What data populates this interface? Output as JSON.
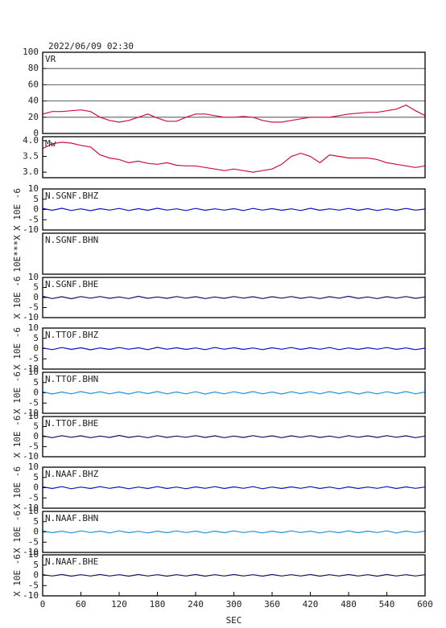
{
  "chart_data": [
    {
      "type": "line",
      "title": "2022/06/09 02:30",
      "label": "VR",
      "color": "#d0103a",
      "grid": true,
      "x": [
        0,
        15,
        30,
        45,
        60,
        75,
        90,
        105,
        120,
        135,
        150,
        165,
        180,
        195,
        210,
        225,
        240,
        255,
        270,
        285,
        300,
        315,
        330,
        345,
        360,
        375,
        390,
        405,
        420,
        435,
        450,
        465,
        480,
        495,
        510,
        525,
        540,
        555,
        570,
        585,
        600
      ],
      "values": [
        24,
        27,
        27,
        28,
        29,
        27,
        20,
        16,
        14,
        16,
        20,
        24,
        19,
        15,
        15,
        20,
        24,
        24,
        22,
        20,
        20,
        21,
        20,
        16,
        14,
        14,
        16,
        18,
        20,
        20,
        20,
        22,
        24,
        25,
        26,
        26,
        28,
        30,
        35,
        28,
        22
      ],
      "ylim": [
        0,
        100
      ],
      "yticks": [
        0,
        20,
        40,
        60,
        80,
        100
      ]
    },
    {
      "type": "line",
      "label": "Mw",
      "color": "#d0103a",
      "x": [
        0,
        15,
        30,
        45,
        60,
        75,
        90,
        105,
        120,
        135,
        150,
        165,
        180,
        195,
        210,
        225,
        240,
        255,
        270,
        285,
        300,
        315,
        330,
        345,
        360,
        375,
        390,
        405,
        420,
        435,
        450,
        465,
        480,
        495,
        510,
        525,
        540,
        555,
        570,
        585,
        600
      ],
      "values": [
        3.75,
        3.9,
        3.95,
        3.92,
        3.85,
        3.8,
        3.55,
        3.45,
        3.4,
        3.3,
        3.35,
        3.28,
        3.25,
        3.3,
        3.22,
        3.2,
        3.2,
        3.15,
        3.1,
        3.05,
        3.1,
        3.05,
        3.0,
        3.05,
        3.1,
        3.25,
        3.5,
        3.6,
        3.5,
        3.3,
        3.55,
        3.5,
        3.45,
        3.45,
        3.45,
        3.4,
        3.3,
        3.25,
        3.2,
        3.15,
        3.2
      ],
      "ylim": [
        2.825,
        4.125
      ],
      "yticks": [
        {
          "value": 3,
          "label": "3.0"
        },
        3.5,
        {
          "value": 4,
          "label": "4.0"
        }
      ]
    },
    {
      "type": "line",
      "label": "N.SGNF.BHZ",
      "ylabel": "X 10E -6",
      "color": "#1010c0",
      "x": [
        0,
        15,
        30,
        45,
        60,
        75,
        90,
        105,
        120,
        135,
        150,
        165,
        180,
        195,
        210,
        225,
        240,
        255,
        270,
        285,
        300,
        315,
        330,
        345,
        360,
        375,
        390,
        405,
        420,
        435,
        450,
        465,
        480,
        495,
        510,
        525,
        540,
        555,
        570,
        585,
        600
      ],
      "values": [
        0.5,
        -0.4,
        0.6,
        -0.5,
        0.3,
        -0.6,
        0.4,
        -0.3,
        0.5,
        -0.5,
        0.4,
        -0.4,
        0.6,
        -0.3,
        0.3,
        -0.5,
        0.5,
        -0.4,
        0.3,
        -0.3,
        0.4,
        -0.5,
        0.5,
        -0.3,
        0.4,
        -0.4,
        0.3,
        -0.5,
        0.6,
        -0.4,
        0.3,
        -0.3,
        0.5,
        -0.4,
        0.4,
        -0.5,
        0.3,
        -0.4,
        0.5,
        -0.3,
        0.2
      ],
      "ylim": [
        -10,
        10
      ],
      "yticks": [
        -10,
        -5,
        0,
        5,
        10
      ]
    },
    {
      "type": "line",
      "label": "N.SGNF.BHN",
      "ylabel": "10E***X",
      "color": "#2090e0",
      "x": [],
      "values": []
    },
    {
      "type": "line",
      "label": "N.SGNF.BHE",
      "ylabel": "X 10E -6",
      "color": "#101060",
      "x": [
        0,
        15,
        30,
        45,
        60,
        75,
        90,
        105,
        120,
        135,
        150,
        165,
        180,
        195,
        210,
        225,
        240,
        255,
        270,
        285,
        300,
        315,
        330,
        345,
        360,
        375,
        390,
        405,
        420,
        435,
        450,
        465,
        480,
        495,
        510,
        525,
        540,
        555,
        570,
        585,
        600
      ],
      "values": [
        0.6,
        -0.5,
        0.4,
        -0.6,
        0.5,
        -0.3,
        0.5,
        -0.4,
        0.3,
        -0.5,
        0.6,
        -0.4,
        0.3,
        -0.4,
        0.5,
        -0.3,
        0.4,
        -0.5,
        0.3,
        -0.4,
        0.5,
        -0.3,
        0.4,
        -0.5,
        0.4,
        -0.3,
        0.5,
        -0.4,
        0.3,
        -0.5,
        0.4,
        -0.3,
        0.6,
        -0.4,
        0.3,
        -0.5,
        0.4,
        -0.3,
        0.5,
        -0.4,
        0.3
      ],
      "ylim": [
        -10,
        10
      ],
      "yticks": [
        -10,
        -5,
        0,
        5,
        10
      ]
    },
    {
      "type": "line",
      "label": "N.TTOF.BHZ",
      "ylabel": "X 10E -6",
      "color": "#1010c0",
      "x": [
        0,
        15,
        30,
        45,
        60,
        75,
        90,
        105,
        120,
        135,
        150,
        165,
        180,
        195,
        210,
        225,
        240,
        255,
        270,
        285,
        300,
        315,
        330,
        345,
        360,
        375,
        390,
        405,
        420,
        435,
        450,
        465,
        480,
        495,
        510,
        525,
        540,
        555,
        570,
        585,
        600
      ],
      "values": [
        0.3,
        -0.5,
        0.5,
        -0.4,
        0.4,
        -0.6,
        0.3,
        -0.4,
        0.5,
        -0.3,
        0.4,
        -0.5,
        0.6,
        -0.3,
        0.4,
        -0.4,
        0.3,
        -0.5,
        0.5,
        -0.3,
        0.4,
        -0.4,
        0.3,
        -0.5,
        0.4,
        -0.3,
        0.5,
        -0.4,
        0.4,
        -0.3,
        0.5,
        -0.5,
        0.3,
        -0.4,
        0.4,
        -0.3,
        0.5,
        -0.4,
        0.3,
        -0.5,
        0.2
      ],
      "ylim": [
        -10,
        10
      ],
      "yticks": [
        -10,
        -5,
        0,
        5,
        10
      ]
    },
    {
      "type": "line",
      "label": "N.TTOF.BHN",
      "ylabel": "X 10E -6",
      "color": "#2090e0",
      "x": [
        0,
        15,
        30,
        45,
        60,
        75,
        90,
        105,
        120,
        135,
        150,
        165,
        180,
        195,
        210,
        225,
        240,
        255,
        270,
        285,
        300,
        315,
        330,
        345,
        360,
        375,
        390,
        405,
        420,
        435,
        450,
        465,
        480,
        495,
        510,
        525,
        540,
        555,
        570,
        585,
        600
      ],
      "values": [
        0.5,
        -0.6,
        0.4,
        -0.5,
        0.6,
        -0.4,
        0.5,
        -0.5,
        0.4,
        -0.6,
        0.5,
        -0.4,
        0.6,
        -0.5,
        0.4,
        -0.5,
        0.5,
        -0.6,
        0.4,
        -0.5,
        0.5,
        -0.4,
        0.6,
        -0.5,
        0.4,
        -0.6,
        0.5,
        -0.4,
        0.5,
        -0.5,
        0.6,
        -0.4,
        0.5,
        -0.6,
        0.4,
        -0.5,
        0.5,
        -0.4,
        0.6,
        -0.5,
        0.4
      ],
      "ylim": [
        -10,
        10
      ],
      "yticks": [
        -10,
        -5,
        0,
        5,
        10
      ]
    },
    {
      "type": "line",
      "label": "N.TTOF.BHE",
      "ylabel": "X 10E -6",
      "color": "#101060",
      "x": [
        0,
        15,
        30,
        45,
        60,
        75,
        90,
        105,
        120,
        135,
        150,
        165,
        180,
        195,
        210,
        225,
        240,
        255,
        270,
        285,
        300,
        315,
        330,
        345,
        360,
        375,
        390,
        405,
        420,
        435,
        450,
        465,
        480,
        495,
        510,
        525,
        540,
        555,
        570,
        585,
        600
      ],
      "values": [
        0.4,
        -0.5,
        0.5,
        -0.3,
        0.4,
        -0.5,
        0.3,
        -0.4,
        0.6,
        -0.4,
        0.3,
        -0.5,
        0.5,
        -0.4,
        0.3,
        -0.3,
        0.5,
        -0.4,
        0.4,
        -0.5,
        0.3,
        -0.4,
        0.5,
        -0.3,
        0.4,
        -0.5,
        0.4,
        -0.3,
        0.5,
        -0.4,
        0.3,
        -0.5,
        0.5,
        -0.3,
        0.4,
        -0.4,
        0.5,
        -0.3,
        0.4,
        -0.5,
        0.3
      ],
      "ylim": [
        -10,
        10
      ],
      "yticks": [
        -10,
        -5,
        0,
        5,
        10
      ]
    },
    {
      "type": "line",
      "label": "N.NAAF.BHZ",
      "ylabel": "X 10E -6",
      "color": "#1010c0",
      "x": [
        0,
        15,
        30,
        45,
        60,
        75,
        90,
        105,
        120,
        135,
        150,
        165,
        180,
        195,
        210,
        225,
        240,
        255,
        270,
        285,
        300,
        315,
        330,
        345,
        360,
        375,
        390,
        405,
        420,
        435,
        450,
        465,
        480,
        495,
        510,
        525,
        540,
        555,
        570,
        585,
        600
      ],
      "values": [
        0.4,
        -0.4,
        0.5,
        -0.5,
        0.3,
        -0.4,
        0.5,
        -0.3,
        0.4,
        -0.5,
        0.3,
        -0.4,
        0.5,
        -0.4,
        0.3,
        -0.5,
        0.4,
        -0.3,
        0.5,
        -0.4,
        0.4,
        -0.3,
        0.5,
        -0.5,
        0.3,
        -0.4,
        0.4,
        -0.3,
        0.5,
        -0.4,
        0.3,
        -0.5,
        0.4,
        -0.4,
        0.3,
        -0.3,
        0.5,
        -0.4,
        0.4,
        -0.3,
        0.3
      ],
      "ylim": [
        -10,
        10
      ],
      "yticks": [
        -10,
        -5,
        0,
        5,
        10
      ]
    },
    {
      "type": "line",
      "label": "N.NAAF.BHN",
      "ylabel": "X 10E -6",
      "color": "#2090e0",
      "x": [
        0,
        15,
        30,
        45,
        60,
        75,
        90,
        105,
        120,
        135,
        150,
        165,
        180,
        195,
        210,
        225,
        240,
        255,
        270,
        285,
        300,
        315,
        330,
        345,
        360,
        375,
        390,
        405,
        420,
        435,
        450,
        465,
        480,
        495,
        510,
        525,
        540,
        555,
        570,
        585,
        600
      ],
      "values": [
        0.5,
        -0.4,
        0.4,
        -0.5,
        0.5,
        -0.3,
        0.4,
        -0.5,
        0.5,
        -0.4,
        0.3,
        -0.5,
        0.4,
        -0.4,
        0.5,
        -0.3,
        0.4,
        -0.5,
        0.4,
        -0.4,
        0.5,
        -0.3,
        0.3,
        -0.5,
        0.4,
        -0.4,
        0.5,
        -0.3,
        0.4,
        -0.5,
        0.3,
        -0.4,
        0.5,
        -0.4,
        0.4,
        -0.3,
        0.5,
        -0.5,
        0.4,
        -0.3,
        0.4
      ],
      "ylim": [
        -10,
        10
      ],
      "yticks": [
        -10,
        -5,
        0,
        5,
        10
      ]
    },
    {
      "type": "line",
      "label": "N.NAAF.BHE",
      "ylabel": "X 10E -6",
      "color": "#101060",
      "xlabel": "SEC",
      "x": [
        0,
        15,
        30,
        45,
        60,
        75,
        90,
        105,
        120,
        135,
        150,
        165,
        180,
        195,
        210,
        225,
        240,
        255,
        270,
        285,
        300,
        315,
        330,
        345,
        360,
        375,
        390,
        405,
        420,
        435,
        450,
        465,
        480,
        495,
        510,
        525,
        540,
        555,
        570,
        585,
        600
      ],
      "values": [
        0.3,
        -0.3,
        0.4,
        -0.4,
        0.3,
        -0.3,
        0.4,
        -0.3,
        0.3,
        -0.4,
        0.4,
        -0.3,
        0.3,
        -0.4,
        0.3,
        -0.3,
        0.4,
        -0.4,
        0.3,
        -0.3,
        0.4,
        -0.3,
        0.3,
        -0.4,
        0.4,
        -0.3,
        0.3,
        -0.3,
        0.4,
        -0.4,
        0.3,
        -0.3,
        0.4,
        -0.3,
        0.3,
        -0.4,
        0.4,
        -0.3,
        0.3,
        -0.3,
        0.3
      ],
      "ylim": [
        -10,
        10
      ],
      "yticks": [
        -10,
        -5,
        0,
        5,
        10
      ],
      "xlim": [
        0,
        600
      ],
      "xticks": [
        0,
        60,
        120,
        180,
        240,
        300,
        360,
        420,
        480,
        540,
        600
      ]
    }
  ]
}
